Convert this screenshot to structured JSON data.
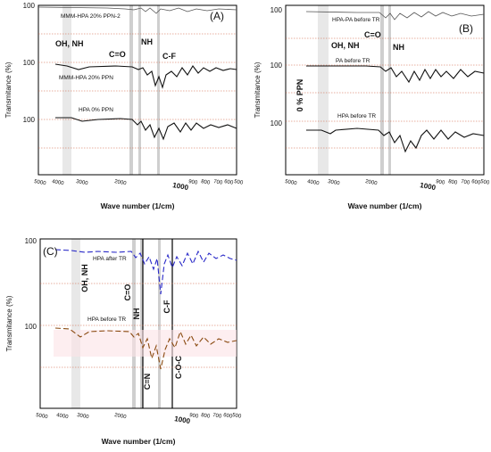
{
  "figure": {
    "panels": [
      {
        "id": "A",
        "label": "(A)",
        "ylabel": "Transmitance (%)",
        "xlabel": "Wave number (1/cm)",
        "x_ticks": [
          "5000",
          "4000",
          "3000",
          "2000",
          "1000",
          "900",
          "800",
          "700",
          "600",
          "500"
        ],
        "tick_labels_left": [
          "100",
          "100",
          "100"
        ],
        "traces": [
          {
            "name": "MMM-HPA 20% PPN-2",
            "color": "#555555",
            "dash": ""
          },
          {
            "name": "MMM-HPA 20% PPN",
            "color": "#111111",
            "dash": ""
          },
          {
            "name": "HPA 0% PPN",
            "color": "#111111",
            "dash": ""
          }
        ],
        "annotations": [
          "OH, NH",
          "C=O",
          "NH",
          "C-F"
        ]
      },
      {
        "id": "B",
        "label": "(B)",
        "ylabel": "Transmitance (%)",
        "xlabel": "Wave number (1/cm)",
        "side_label": "0 % PPN",
        "x_ticks": [
          "5000",
          "4000",
          "3000",
          "2000",
          "1000",
          "900",
          "800",
          "700",
          "600",
          "500"
        ],
        "tick_labels_left": [
          "100",
          "100",
          "100"
        ],
        "traces": [
          {
            "name": "HPA-PA before TR",
            "color": "#555555",
            "dash": ""
          },
          {
            "name": "PA before TR",
            "color": "#111111",
            "dash": ""
          },
          {
            "name": "HPA before TR",
            "color": "#111111",
            "dash": ""
          }
        ],
        "annotations": [
          "OH, NH",
          "C=O",
          "NH"
        ]
      },
      {
        "id": "C",
        "label": "(C)",
        "ylabel": "Transmitance (%)",
        "xlabel": "Wave number (1/cm)",
        "x_ticks": [
          "5000",
          "4000",
          "3000",
          "2000",
          "1000",
          "900",
          "800",
          "700",
          "600",
          "500"
        ],
        "tick_labels_left": [
          "100",
          "100"
        ],
        "traces": [
          {
            "name": "HPA after TR",
            "color": "#2a2ac8",
            "dash": "6 3"
          },
          {
            "name": "HPA before TR",
            "color": "#8a4a10",
            "dash": "6 3"
          }
        ],
        "annotations": [
          "OH, NH",
          "C=O",
          "NH",
          "C-F",
          "C=N",
          "C-O-C"
        ]
      }
    ]
  },
  "chart_data": [
    {
      "type": "line",
      "title": "(A)",
      "xlabel": "Wave number (1/cm)",
      "ylabel": "Transmitance (%)",
      "x": [
        5000,
        4000,
        3000,
        2000,
        1000,
        900,
        800,
        700,
        600,
        500
      ],
      "series": [
        {
          "name": "MMM-HPA 20% PPN-2",
          "values": [
            100,
            100,
            99,
            99,
            96,
            97,
            96,
            97,
            96,
            97
          ]
        },
        {
          "name": "MMM-HPA 20% PPN",
          "values": [
            100,
            100,
            96,
            98,
            90,
            93,
            94,
            92,
            94,
            94
          ]
        },
        {
          "name": "HPA 0% PPN",
          "values": [
            100,
            100,
            97,
            99,
            92,
            95,
            96,
            95,
            96,
            94
          ]
        }
      ],
      "grid": false,
      "legend": "inline"
    },
    {
      "type": "line",
      "title": "(B)",
      "xlabel": "Wave number (1/cm)",
      "ylabel": "Transmitance (%)",
      "x": [
        5000,
        4000,
        3000,
        2000,
        1000,
        900,
        800,
        700,
        600,
        500
      ],
      "series": [
        {
          "name": "HPA-PA before TR",
          "values": [
            100,
            100,
            99,
            99,
            96,
            97,
            96,
            97,
            96,
            96
          ]
        },
        {
          "name": "PA before TR",
          "values": [
            100,
            100,
            99,
            99,
            93,
            97,
            95,
            96,
            96,
            95
          ]
        },
        {
          "name": "HPA before TR",
          "values": [
            100,
            100,
            96,
            99,
            90,
            94,
            95,
            93,
            96,
            95
          ]
        }
      ],
      "grid": false,
      "legend": "inline"
    },
    {
      "type": "line",
      "title": "(C)",
      "xlabel": "Wave number (1/cm)",
      "ylabel": "Transmitance (%)",
      "x": [
        5000,
        4000,
        3000,
        2000,
        1000,
        900,
        800,
        700,
        600,
        500
      ],
      "series": [
        {
          "name": "HPA after TR",
          "values": [
            100,
            100,
            99,
            99,
            92,
            97,
            95,
            97,
            96,
            97
          ]
        },
        {
          "name": "HPA before TR",
          "values": [
            100,
            100,
            96,
            99,
            90,
            95,
            96,
            94,
            96,
            96
          ]
        }
      ],
      "grid": false,
      "legend": "inline"
    }
  ]
}
